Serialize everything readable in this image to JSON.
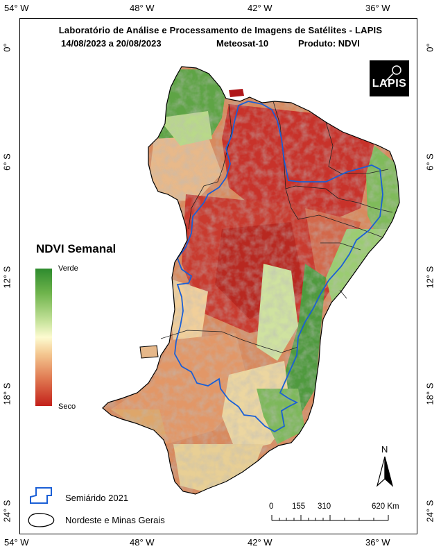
{
  "title": {
    "line1": "Laboratório de Análise e Processamento de Imagens de Satélites - LAPIS",
    "dates": "14/08/2023  a  20/08/2023",
    "satellite": "Meteosat-10",
    "product": "Produto: NDVI"
  },
  "logo": {
    "text": "LAPIS"
  },
  "axes": {
    "longitude_ticks": [
      "54° W",
      "48° W",
      "42° W",
      "36° W"
    ],
    "latitude_ticks": [
      "0°",
      "6° S",
      "12° S",
      "18° S",
      "24° S"
    ]
  },
  "legend": {
    "title": "NDVI Semanal",
    "high_label": "Verde",
    "low_label": "Seco",
    "ramp_colors": [
      "#2e8b2e",
      "#6fb44c",
      "#c5e29a",
      "#fdfbd0",
      "#f4c891",
      "#e07a52",
      "#c3201a"
    ]
  },
  "layers": {
    "semiarid_label": "Semiárido 2021",
    "semiarid_color": "#1a5fd6",
    "region_label": "Nordeste e Minas Gerais"
  },
  "north_arrow": {
    "label": "N"
  },
  "scale_bar": {
    "labels": [
      "0",
      "155",
      "310",
      "620 Km"
    ]
  }
}
